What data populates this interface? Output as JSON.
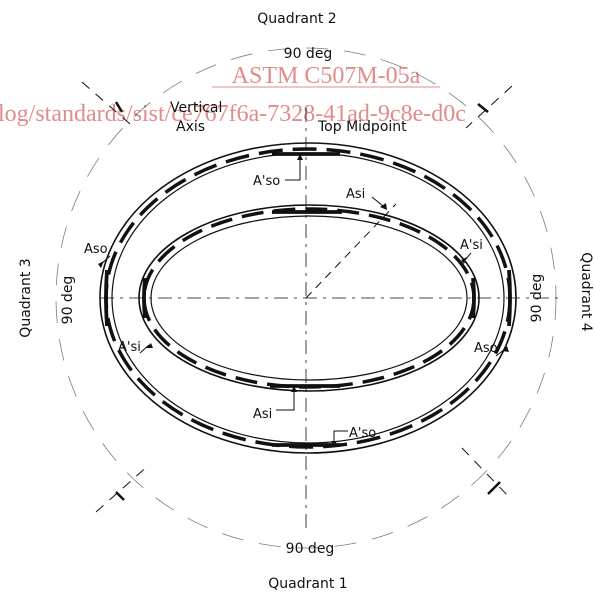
{
  "labels": {
    "quadrant_top": "Quadrant 2",
    "quadrant_bottom": "Quadrant 1",
    "quadrant_left": "Quadrant 3",
    "quadrant_right": "Quadrant 4",
    "deg_top": "90 deg",
    "deg_bottom": "90 deg",
    "deg_left": "90 deg",
    "deg_right": "90 deg",
    "vertical_axis_line1": "Vertical",
    "vertical_axis_line2": "Axis",
    "top_midpoint": "Top Midpoint"
  },
  "callouts": {
    "a_prime_so_top": "A'so",
    "a_si_top": "Asi",
    "a_prime_si_right": "A'si",
    "a_so_left": "Aso",
    "a_prime_si_left": "A'si",
    "a_so_right": "Aso",
    "a_si_bottom": "Asi",
    "a_prime_so_bottom": "A'so"
  },
  "watermark": {
    "line1": "ASTM C507M-05a",
    "line2": "log/standards/sist/ce767f6a-7328-41ad-9c8e-d0c"
  },
  "colors": {
    "ink": "#111111",
    "watermark": "#e28b8b"
  }
}
